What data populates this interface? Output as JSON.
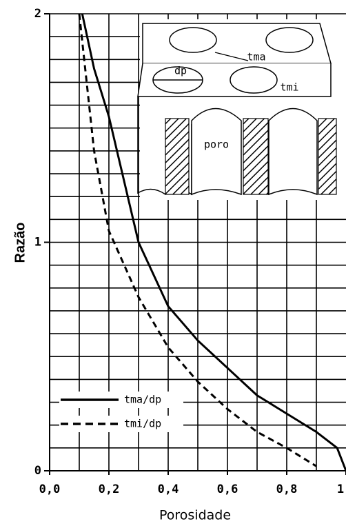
{
  "chart_data": {
    "type": "line",
    "x_label": "Porosidade",
    "y_label": "Razão",
    "xlim": [
      0,
      1
    ],
    "ylim": [
      0,
      2
    ],
    "xticks": [
      {
        "value": 0,
        "label": "0,0"
      },
      {
        "value": 0.2,
        "label": "0,2"
      },
      {
        "value": 0.4,
        "label": "0,4"
      },
      {
        "value": 0.6,
        "label": "0,6"
      },
      {
        "value": 0.8,
        "label": "0,8"
      },
      1
    ],
    "yticks": [
      0,
      1,
      2
    ],
    "xgrid": [
      0.1,
      0.2,
      0.3,
      0.4,
      0.5,
      0.6,
      0.7,
      0.8,
      0.9
    ],
    "ygrid": [
      0.1,
      0.2,
      0.3,
      0.4,
      0.5,
      0.6,
      0.7,
      0.8,
      0.9,
      1,
      1.1,
      1.2,
      1.3,
      1.4,
      1.5,
      1.6,
      1.7,
      1.8,
      1.9,
      2
    ],
    "grid": true,
    "legend": "lower left",
    "series": [
      {
        "name": "tma/dp",
        "color": "#000000",
        "dash": "solid",
        "x": [
          0.11,
          0.15,
          0.2,
          0.3,
          0.4,
          0.5,
          0.6,
          0.7,
          0.8,
          0.9,
          0.97,
          1.0
        ],
        "values": [
          2.0,
          1.76,
          1.55,
          1.0,
          0.72,
          0.57,
          0.45,
          0.33,
          0.25,
          0.17,
          0.1,
          0.0
        ]
      },
      {
        "name": "tmi/dp",
        "color": "#000000",
        "dash": "dashed",
        "x": [
          0.1,
          0.12,
          0.15,
          0.2,
          0.3,
          0.4,
          0.5,
          0.6,
          0.7,
          0.8,
          0.9
        ],
        "values": [
          2.0,
          1.76,
          1.4,
          1.05,
          0.76,
          0.54,
          0.39,
          0.27,
          0.17,
          0.1,
          0.02
        ]
      }
    ],
    "annotations": [
      "dp",
      "tma",
      "tmi",
      "poro"
    ]
  }
}
